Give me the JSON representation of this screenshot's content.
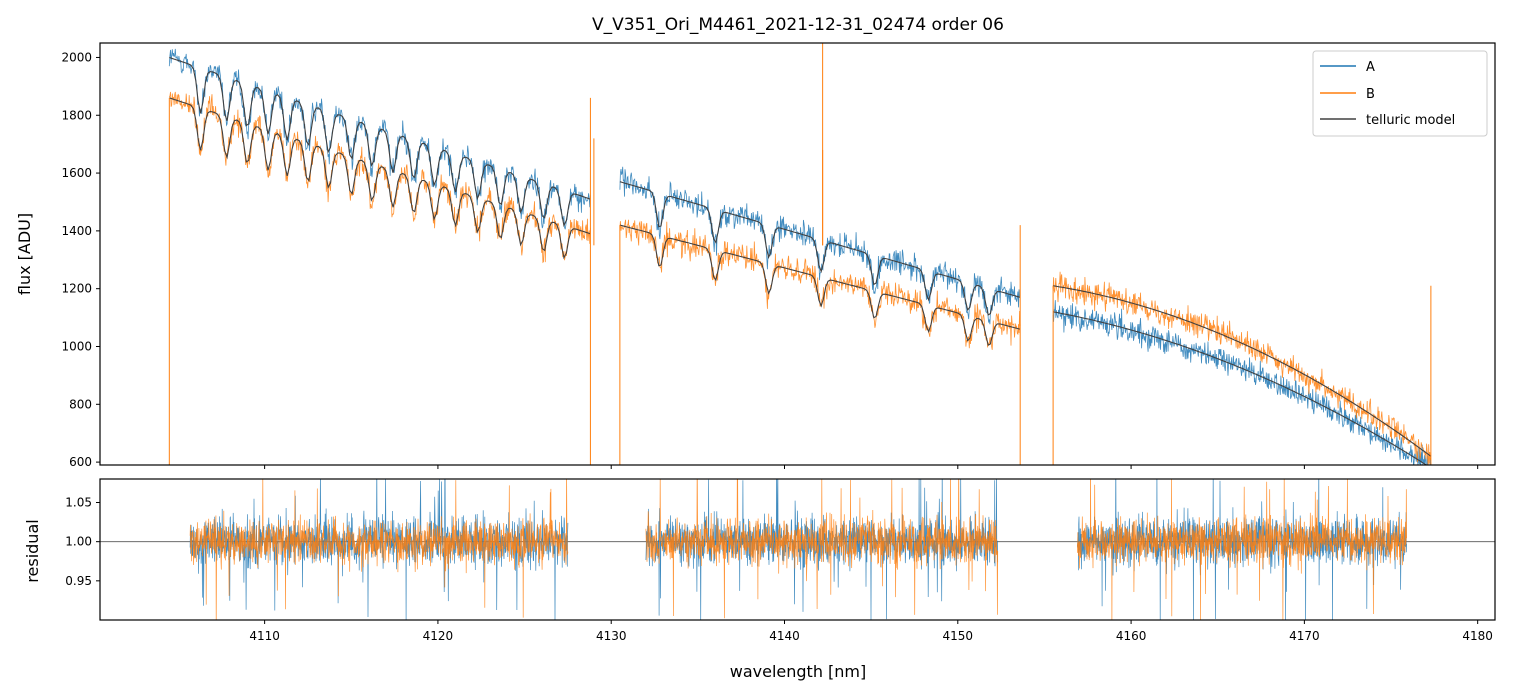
{
  "chart_data": [
    {
      "type": "line",
      "panel": "top",
      "title": "V_V351_Ori_M4461_2021-12-31_02474  order 06",
      "xlabel": "",
      "ylabel": "flux [ADU]",
      "xlim": [
        4100.5,
        4181
      ],
      "ylim": [
        590,
        2050
      ],
      "yticks": [
        600,
        800,
        1000,
        1200,
        1400,
        1600,
        1800,
        2000
      ],
      "xticks": [
        4110,
        4120,
        4130,
        4140,
        4150,
        4160,
        4170,
        4180
      ],
      "legend": {
        "placement": "top-right",
        "entries": [
          "A",
          "B",
          "telluric model"
        ]
      },
      "segments": [
        {
          "x_range": [
            4104.5,
            4128.8
          ],
          "A_start": 2000,
          "A_end": 1510,
          "B_start": 1860,
          "B_end": 1390
        },
        {
          "x_range": [
            4130.5,
            4153.6
          ],
          "A_start": 1570,
          "A_end": 1170,
          "B_start": 1420,
          "B_end": 1060
        },
        {
          "x_range": [
            4155.5,
            4177.3
          ],
          "A_start": 1120,
          "A_end": 580,
          "B_start": 1210,
          "B_end": 620
        }
      ],
      "series": [
        {
          "name": "A",
          "color": "#1f77b4"
        },
        {
          "name": "B",
          "color": "#ff7f0e"
        },
        {
          "name": "telluric model",
          "color": "#404040"
        }
      ]
    },
    {
      "type": "line",
      "panel": "bottom",
      "xlabel": "wavelength [nm]",
      "ylabel": "residual",
      "xlim": [
        4100.5,
        4181
      ],
      "ylim": [
        0.9,
        1.08
      ],
      "yticks": [
        0.95,
        1.0,
        1.05
      ],
      "xticks": [
        4110,
        4120,
        4130,
        4140,
        4150,
        4160,
        4170,
        4180
      ],
      "reference_line": 1.0,
      "segments": [
        [
          4105.7,
          4127.5
        ],
        [
          4132.0,
          4152.3
        ],
        [
          4156.9,
          4175.9
        ]
      ],
      "series": [
        {
          "name": "A",
          "color": "#1f77b4"
        },
        {
          "name": "B",
          "color": "#ff7f0e"
        }
      ]
    }
  ]
}
